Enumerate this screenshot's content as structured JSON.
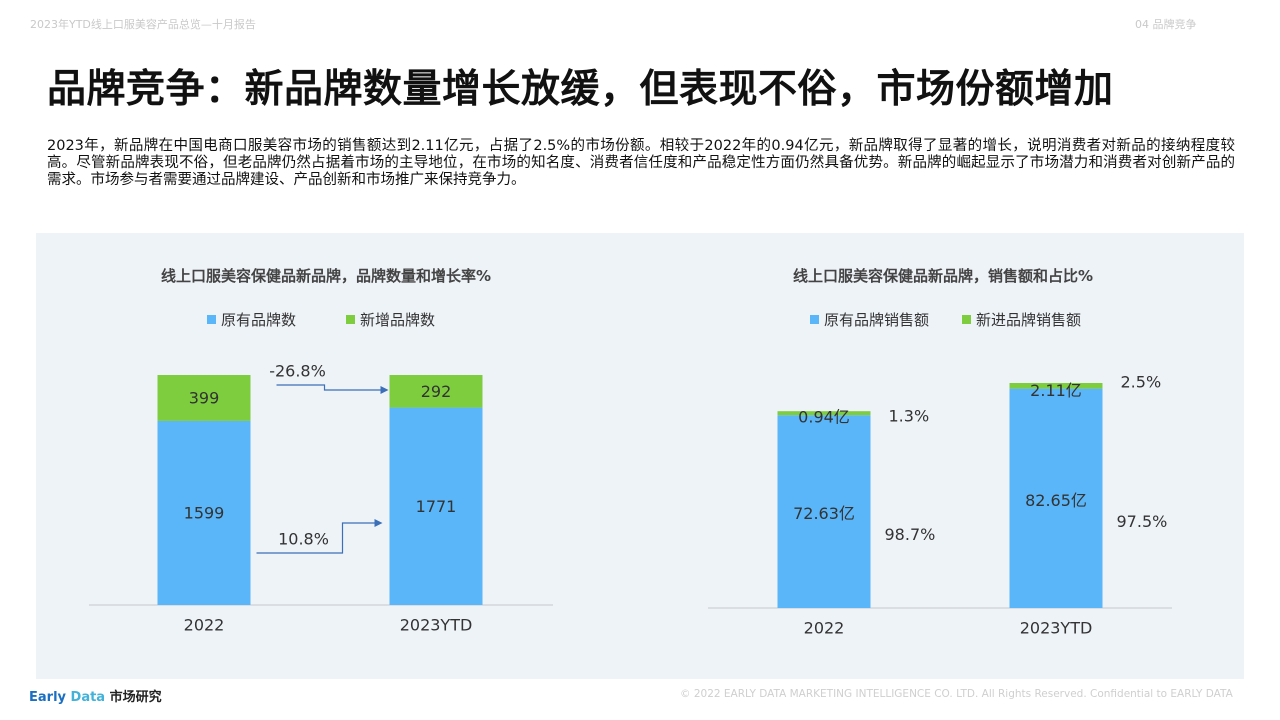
{
  "header": {
    "report_title": "2023年YTD线上口服美容产品总览—十月报告",
    "section": "04  品牌竞争"
  },
  "page": {
    "title": "品牌竞争：新品牌数量增长放缓，但表现不俗，市场份额增加",
    "description": "2023年，新品牌在中国电商口服美容市场的销售额达到2.11亿元，占据了2.5%的市场份额。相较于2022年的0.94亿元，新品牌取得了显著的增长，说明消费者对新品的接纳程度较高。尽管新品牌表现不俗，但老品牌仍然占据着市场的主导地位，在市场的知名度、消费者信任度和产品稳定性方面仍然具备优势。新品牌的崛起显示了市场潜力和消费者对创新产品的需求。市场参与者需要通过品牌建设、产品创新和市场推广来保持竞争力。"
  },
  "colors": {
    "blue": "#5ab6f9",
    "green": "#7dcd3f",
    "arrow": "#3b6fb8",
    "axis": "#d4d8dc"
  },
  "chart_data": [
    {
      "type": "bar",
      "stacked": true,
      "title": "线上口服美容保健品新品牌，品牌数量和增长率%",
      "categories": [
        "2022",
        "2023YTD"
      ],
      "series": [
        {
          "name": "原有品牌数",
          "values": [
            1599,
            1771
          ],
          "labels": [
            "1599",
            "1771"
          ]
        },
        {
          "name": "新增品牌数",
          "values": [
            399,
            292
          ],
          "labels": [
            "399",
            "292"
          ]
        }
      ],
      "annotations": [
        {
          "series": "新增品牌数",
          "text": "-26.8%"
        },
        {
          "series": "原有品牌数",
          "text": "10.8%"
        }
      ],
      "legend_position": "top",
      "grid": false
    },
    {
      "type": "bar",
      "stacked": true,
      "title": "线上口服美容保健品新品牌，销售额和占比%",
      "unit": "亿",
      "categories": [
        "2022",
        "2023YTD"
      ],
      "series": [
        {
          "name": "原有品牌销售额",
          "values": [
            72.63,
            82.65
          ],
          "labels": [
            "72.63亿",
            "82.65亿"
          ],
          "share_labels": [
            "98.7%",
            "97.5%"
          ]
        },
        {
          "name": "新进品牌销售额",
          "values": [
            0.94,
            2.11
          ],
          "labels": [
            "0.94亿",
            "2.11亿"
          ],
          "share_labels": [
            "1.3%",
            "2.5%"
          ]
        }
      ],
      "legend_position": "top",
      "grid": false
    }
  ],
  "footer": {
    "logo_part1": "Early",
    "logo_part2": "Data",
    "logo_part3": "市场研究",
    "copyright": "© 2022 EARLY DATA MARKETING INTELLIGENCE CO. LTD. All Rights Reserved. Confidential to EARLY DATA"
  }
}
